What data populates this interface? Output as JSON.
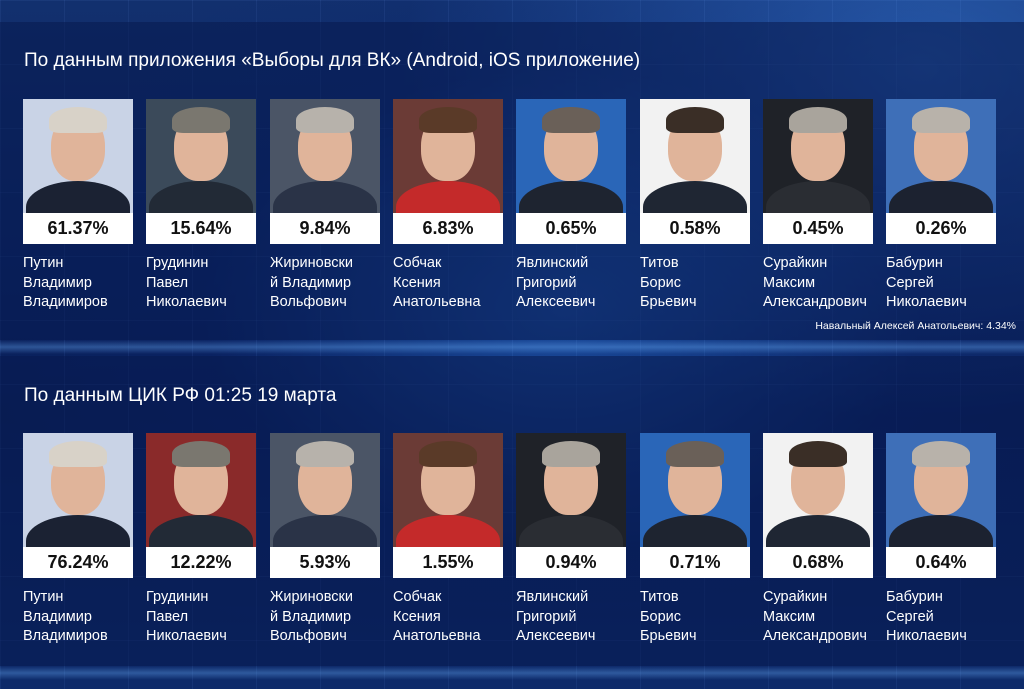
{
  "sections": [
    {
      "title": "По данным приложения «Выборы для ВК» (Android, iOS приложение)",
      "candidates": [
        {
          "name": [
            "Путин",
            "Владимир",
            "Владимиров"
          ],
          "percent": "61.37%",
          "photo_bg": "#c9d3e6",
          "suit": "#1b2233",
          "hair": "#d8d2c8"
        },
        {
          "name": [
            "Грудинин",
            "Павел",
            "Николаевич"
          ],
          "percent": "15.64%",
          "photo_bg": "#3b4a5a",
          "suit": "#222a36",
          "hair": "#7a776f"
        },
        {
          "name": [
            "Жириновски",
            "й Владимир",
            "Вольфович"
          ],
          "percent": "9.84%",
          "photo_bg": "#4b5566",
          "suit": "#2a3347",
          "hair": "#b7b2ab"
        },
        {
          "name": [
            "Собчак",
            "Ксения",
            "Анатольевна"
          ],
          "percent": "6.83%",
          "photo_bg": "#6b3b36",
          "suit": "#c42a2a",
          "hair": "#5a3a28"
        },
        {
          "name": [
            "Явлинский",
            "Григорий",
            "Алексеевич"
          ],
          "percent": "0.65%",
          "photo_bg": "#2a66b8",
          "suit": "#1e2430",
          "hair": "#6a6058"
        },
        {
          "name": [
            "Титов",
            "Борис",
            "Брьевич"
          ],
          "percent": "0.58%",
          "photo_bg": "#f2f2f2",
          "suit": "#1f2633",
          "hair": "#3a2e26"
        },
        {
          "name": [
            "Сурайкин",
            "Максим",
            "Александрович"
          ],
          "percent": "0.45%",
          "photo_bg": "#1f2228",
          "suit": "#2a2d33",
          "hair": "#a9a49c"
        },
        {
          "name": [
            "Бабурин",
            "Сергей",
            "Николаевич"
          ],
          "percent": "0.26%",
          "photo_bg": "#3e6fb8",
          "suit": "#1c2230",
          "hair": "#b8b2aa"
        }
      ],
      "note": "Навальный Алексей Анатольевич: 4.34%"
    },
    {
      "title": "По данным ЦИК РФ 01:25 19 марта",
      "candidates": [
        {
          "name": [
            "Путин",
            "Владимир",
            "Владимиров"
          ],
          "percent": "76.24%",
          "photo_bg": "#c9d3e6",
          "suit": "#1b2233",
          "hair": "#d8d2c8"
        },
        {
          "name": [
            "Грудинин",
            "Павел",
            "Николаевич"
          ],
          "percent": "12.22%",
          "photo_bg": "#8a2a2a",
          "suit": "#222a36",
          "hair": "#7a776f"
        },
        {
          "name": [
            "Жириновски",
            "й Владимир",
            "Вольфович"
          ],
          "percent": "5.93%",
          "photo_bg": "#4b5566",
          "suit": "#2a3347",
          "hair": "#b7b2ab"
        },
        {
          "name": [
            "Собчак",
            "Ксения",
            "Анатольевна"
          ],
          "percent": "1.55%",
          "photo_bg": "#6b3b36",
          "suit": "#c42a2a",
          "hair": "#5a3a28"
        },
        {
          "name": [
            "Явлинский",
            "Григорий",
            "Алексеевич"
          ],
          "percent": "0.94%",
          "photo_bg": "#1f2228",
          "suit": "#2a2d33",
          "hair": "#a9a49c"
        },
        {
          "name": [
            "Титов",
            "Борис",
            "Брьевич"
          ],
          "percent": "0.71%",
          "photo_bg": "#2a66b8",
          "suit": "#1e2430",
          "hair": "#6a6058"
        },
        {
          "name": [
            "Сурайкин",
            "Максим",
            "Александрович"
          ],
          "percent": "0.68%",
          "photo_bg": "#f2f2f2",
          "suit": "#1f2633",
          "hair": "#3a2e26"
        },
        {
          "name": [
            "Бабурин",
            "Сергей",
            "Николаевич"
          ],
          "percent": "0.64%",
          "photo_bg": "#3e6fb8",
          "suit": "#1c2230",
          "hair": "#b8b2aa"
        }
      ]
    }
  ]
}
